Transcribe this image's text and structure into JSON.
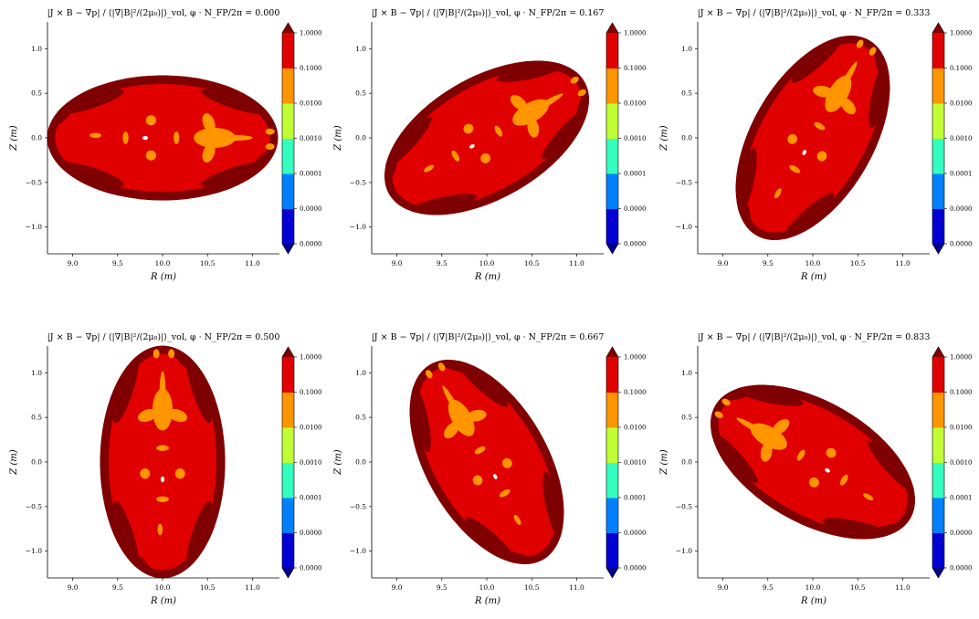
{
  "colorbar": {
    "tick_labels": [
      "0.0000",
      "0.0000",
      "0.0001",
      "0.0010",
      "0.0100",
      "0.1000",
      "1.0000"
    ],
    "colors": [
      "#0000d4",
      "#0080ff",
      "#33ffbf",
      "#bfff33",
      "#ff9500",
      "#e00000"
    ],
    "under_color": "#00008b",
    "over_color": "#7f0000",
    "extend": "both"
  },
  "chart_data": [
    {
      "type": "contourf",
      "title": "|J × B − ∇p| / ⟨|∇|B|²/(2μ₀)|⟩_vol, φ · N_FP/2π = 0.000",
      "xlabel": "R (m)",
      "ylabel": "Z (m)",
      "xlim": [
        8.72,
        11.3
      ],
      "ylim": [
        -1.3,
        1.3
      ],
      "xticks": [
        9.0,
        9.5,
        10.0,
        10.5,
        11.0
      ],
      "xtick_labels": [
        "9.0",
        "9.5",
        "10.0",
        "10.5",
        "11.0"
      ],
      "yticks": [
        -1.0,
        -0.5,
        0.0,
        0.5,
        1.0
      ],
      "ytick_labels": [
        "−1.0",
        "−0.5",
        "0.0",
        "0.5",
        "1.0"
      ],
      "phi_NFP_over_2pi": 0.0,
      "boundary": {
        "center_R": 10.0,
        "center_Z": 0.0,
        "semi_a": 1.29,
        "semi_b": 0.7,
        "tilt_deg": 0
      }
    },
    {
      "type": "contourf",
      "title": "|J × B − ∇p| / ⟨|∇|B|²/(2μ₀)|⟩_vol, φ · N_FP/2π = 0.167",
      "xlabel": "R (m)",
      "ylabel": "Z (m)",
      "xlim": [
        8.72,
        11.3
      ],
      "ylim": [
        -1.3,
        1.3
      ],
      "xticks": [
        9.0,
        9.5,
        10.0,
        10.5,
        11.0
      ],
      "xtick_labels": [
        "9.0",
        "9.5",
        "10.0",
        "10.5",
        "11.0"
      ],
      "yticks": [
        -1.0,
        -0.5,
        0.0,
        0.5,
        1.0
      ],
      "ytick_labels": [
        "−1.0",
        "−0.5",
        "0.0",
        "0.5",
        "1.0"
      ],
      "phi_NFP_over_2pi": 0.167,
      "boundary": {
        "center_R": 10.0,
        "center_Z": 0.0,
        "semi_a": 1.26,
        "semi_b": 0.68,
        "tilt_deg": 30
      }
    },
    {
      "type": "contourf",
      "title": "|J × B − ∇p| / ⟨|∇|B|²/(2μ₀)|⟩_vol, φ · N_FP/2π = 0.333",
      "xlabel": "R (m)",
      "ylabel": "Z (m)",
      "xlim": [
        8.72,
        11.3
      ],
      "ylim": [
        -1.3,
        1.3
      ],
      "xticks": [
        9.0,
        9.5,
        10.0,
        10.5,
        11.0
      ],
      "xtick_labels": [
        "9.0",
        "9.5",
        "10.0",
        "10.5",
        "11.0"
      ],
      "yticks": [
        -1.0,
        -0.5,
        0.0,
        0.5,
        1.0
      ],
      "ytick_labels": [
        "−1.0",
        "−0.5",
        "0.0",
        "0.5",
        "1.0"
      ],
      "phi_NFP_over_2pi": 0.333,
      "boundary": {
        "center_R": 10.0,
        "center_Z": 0.0,
        "semi_a": 1.26,
        "semi_b": 0.68,
        "tilt_deg": 60
      }
    },
    {
      "type": "contourf",
      "title": "|J × B − ∇p| / ⟨|∇|B|²/(2μ₀)|⟩_vol, φ · N_FP/2π = 0.500",
      "xlabel": "R (m)",
      "ylabel": "Z (m)",
      "xlim": [
        8.72,
        11.3
      ],
      "ylim": [
        -1.3,
        1.3
      ],
      "xticks": [
        9.0,
        9.5,
        10.0,
        10.5,
        11.0
      ],
      "xtick_labels": [
        "9.0",
        "9.5",
        "10.0",
        "10.5",
        "11.0"
      ],
      "yticks": [
        -1.0,
        -0.5,
        0.0,
        0.5,
        1.0
      ],
      "ytick_labels": [
        "−1.0",
        "−0.5",
        "0.0",
        "0.5",
        "1.0"
      ],
      "phi_NFP_over_2pi": 0.5,
      "boundary": {
        "center_R": 10.0,
        "center_Z": 0.0,
        "semi_a": 1.3,
        "semi_b": 0.7,
        "tilt_deg": 90
      }
    },
    {
      "type": "contourf",
      "title": "|J × B − ∇p| / ⟨|∇|B|²/(2μ₀)|⟩_vol, φ · N_FP/2π = 0.667",
      "xlabel": "R (m)",
      "ylabel": "Z (m)",
      "xlim": [
        8.72,
        11.3
      ],
      "ylim": [
        -1.3,
        1.3
      ],
      "xticks": [
        9.0,
        9.5,
        10.0,
        10.5,
        11.0
      ],
      "xtick_labels": [
        "9.0",
        "9.5",
        "10.0",
        "10.5",
        "11.0"
      ],
      "yticks": [
        -1.0,
        -0.5,
        0.0,
        0.5,
        1.0
      ],
      "ytick_labels": [
        "−1.0",
        "−0.5",
        "0.0",
        "0.5",
        "1.0"
      ],
      "phi_NFP_over_2pi": 0.667,
      "boundary": {
        "center_R": 10.0,
        "center_Z": 0.0,
        "semi_a": 1.26,
        "semi_b": 0.68,
        "tilt_deg": 120
      }
    },
    {
      "type": "contourf",
      "title": "|J × B − ∇p| / ⟨|∇|B|²/(2μ₀)|⟩_vol, φ · N_FP/2π = 0.833",
      "xlabel": "R (m)",
      "ylabel": "Z (m)",
      "xlim": [
        8.72,
        11.3
      ],
      "ylim": [
        -1.3,
        1.3
      ],
      "xticks": [
        9.0,
        9.5,
        10.0,
        10.5,
        11.0
      ],
      "xtick_labels": [
        "9.0",
        "9.5",
        "10.0",
        "10.5",
        "11.0"
      ],
      "yticks": [
        -1.0,
        -0.5,
        0.0,
        0.5,
        1.0
      ],
      "ytick_labels": [
        "−1.0",
        "−0.5",
        "0.0",
        "0.5",
        "1.0"
      ],
      "phi_NFP_over_2pi": 0.833,
      "boundary": {
        "center_R": 10.0,
        "center_Z": 0.0,
        "semi_a": 1.26,
        "semi_b": 0.68,
        "tilt_deg": 150
      }
    }
  ]
}
